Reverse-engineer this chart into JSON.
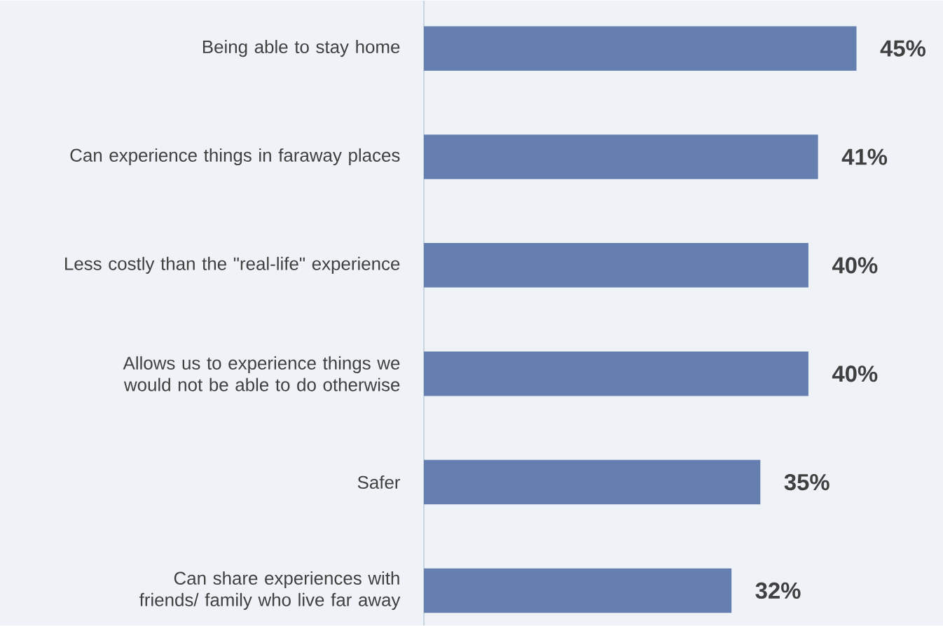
{
  "chart_data": {
    "type": "bar",
    "orientation": "horizontal",
    "categories": [
      "Being able to stay home",
      "Can experience things in faraway places",
      "Less costly than the \"real-life\" experience",
      "Allows us to experience things we would not be able to do otherwise",
      "Safer",
      "Can share experiences with friends/ family who live far away"
    ],
    "values": [
      45,
      41,
      40,
      40,
      35,
      32
    ],
    "value_labels": [
      "45%",
      "41%",
      "40%",
      "40%",
      "35%",
      "32%"
    ],
    "color": "#657fb0",
    "xlim": [
      0,
      54
    ],
    "tick_labels": "y"
  }
}
